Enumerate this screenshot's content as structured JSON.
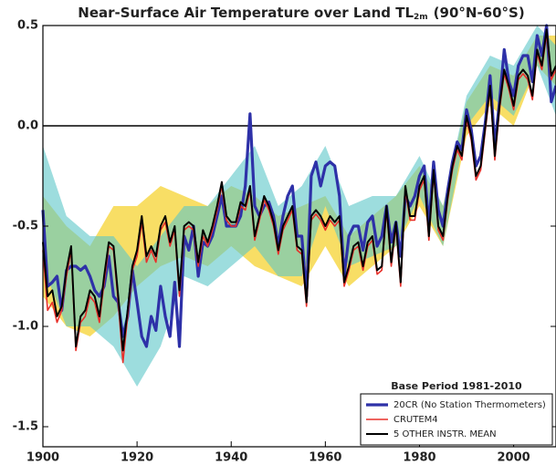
{
  "chart_data": {
    "type": "line",
    "title": "Near-Surface Air Temperature over Land TL",
    "title_subscript": "2m",
    "title_suffix": "(90°N-60°S)",
    "annotation": "Base Period 1981-2010",
    "legend": "lower right",
    "zero_line": true,
    "xlim": [
      1900,
      2009
    ],
    "ylim": [
      -1.6,
      0.5
    ],
    "xticks": [
      1900,
      1920,
      1940,
      1960,
      1980,
      2000
    ],
    "yticks": [
      0.5,
      {
        "value": 0,
        "label": "0.0"
      },
      -0.5,
      {
        "value": -1,
        "label": "-1.0"
      },
      -1.5
    ],
    "x": [
      1900,
      1901,
      1902,
      1903,
      1904,
      1905,
      1906,
      1907,
      1908,
      1909,
      1910,
      1911,
      1912,
      1913,
      1914,
      1915,
      1916,
      1917,
      1918,
      1919,
      1920,
      1921,
      1922,
      1923,
      1924,
      1925,
      1926,
      1927,
      1928,
      1929,
      1930,
      1931,
      1932,
      1933,
      1934,
      1935,
      1936,
      1937,
      1938,
      1939,
      1940,
      1941,
      1942,
      1943,
      1944,
      1945,
      1946,
      1947,
      1948,
      1949,
      1950,
      1951,
      1952,
      1953,
      1954,
      1955,
      1956,
      1957,
      1958,
      1959,
      1960,
      1961,
      1962,
      1963,
      1964,
      1965,
      1966,
      1967,
      1968,
      1969,
      1970,
      1971,
      1972,
      1973,
      1974,
      1975,
      1976,
      1977,
      1978,
      1979,
      1980,
      1981,
      1982,
      1983,
      1984,
      1985,
      1986,
      1987,
      1988,
      1989,
      1990,
      1991,
      1992,
      1993,
      1994,
      1995,
      1996,
      1997,
      1998,
      1999,
      2000,
      2001,
      2002,
      2003,
      2004,
      2005,
      2006,
      2007,
      2008,
      2009
    ],
    "bands": [
      {
        "color": "#f7d84a",
        "x": [
          1900,
          1905,
          1910,
          1915,
          1920,
          1925,
          1930,
          1935,
          1940,
          1945,
          1950,
          1955,
          1960,
          1965,
          1970,
          1975,
          1980,
          1985,
          1990,
          1995,
          2000,
          2005,
          2009
        ],
        "lower": [
          -0.85,
          -1.0,
          -1.05,
          -0.95,
          -0.8,
          -0.7,
          -0.65,
          -0.7,
          -0.6,
          -0.7,
          -0.75,
          -0.8,
          -0.6,
          -0.8,
          -0.7,
          -0.6,
          -0.4,
          -0.6,
          -0.05,
          0.1,
          0.0,
          0.3,
          0.2
        ],
        "upper": [
          -0.35,
          -0.5,
          -0.6,
          -0.4,
          -0.4,
          -0.3,
          -0.35,
          -0.4,
          -0.3,
          -0.35,
          -0.45,
          -0.4,
          -0.35,
          -0.55,
          -0.45,
          -0.35,
          -0.2,
          -0.4,
          0.12,
          0.3,
          0.25,
          0.45,
          0.45
        ]
      },
      {
        "color": "#5cc6c8",
        "x": [
          1900,
          1905,
          1910,
          1915,
          1920,
          1925,
          1930,
          1935,
          1940,
          1945,
          1950,
          1955,
          1960,
          1965,
          1970,
          1975,
          1980,
          1985,
          1990,
          1995,
          2000,
          2005,
          2009
        ],
        "lower": [
          -0.7,
          -1.0,
          -1.0,
          -1.1,
          -1.3,
          -1.1,
          -0.75,
          -0.8,
          -0.7,
          -0.6,
          -0.75,
          -0.75,
          -0.4,
          -0.7,
          -0.65,
          -0.6,
          -0.35,
          -0.6,
          0.0,
          0.15,
          0.05,
          0.3,
          0.05
        ],
        "upper": [
          -0.1,
          -0.45,
          -0.55,
          -0.55,
          -0.7,
          -0.55,
          -0.4,
          -0.4,
          -0.25,
          -0.1,
          -0.4,
          -0.3,
          -0.1,
          -0.4,
          -0.35,
          -0.35,
          -0.15,
          -0.4,
          0.15,
          0.35,
          0.3,
          0.5,
          0.4
        ]
      }
    ],
    "series": [
      {
        "name": "20CR (No Station Thermometers)",
        "color": "#2e31a8",
        "values": [
          -0.42,
          -0.8,
          -0.78,
          -0.75,
          -0.92,
          -0.72,
          -0.7,
          -0.7,
          -0.72,
          -0.7,
          -0.75,
          -0.82,
          -0.85,
          -0.8,
          -0.65,
          -0.85,
          -0.88,
          -1.05,
          -0.95,
          -0.72,
          -0.88,
          -1.05,
          -1.1,
          -0.95,
          -1.02,
          -0.8,
          -0.95,
          -1.05,
          -0.78,
          -1.1,
          -0.55,
          -0.62,
          -0.5,
          -0.75,
          -0.58,
          -0.6,
          -0.55,
          -0.45,
          -0.35,
          -0.5,
          -0.5,
          -0.5,
          -0.45,
          -0.3,
          0.06,
          -0.4,
          -0.45,
          -0.4,
          -0.38,
          -0.45,
          -0.6,
          -0.45,
          -0.35,
          -0.3,
          -0.55,
          -0.55,
          -0.85,
          -0.25,
          -0.18,
          -0.3,
          -0.2,
          -0.18,
          -0.2,
          -0.35,
          -0.75,
          -0.55,
          -0.5,
          -0.5,
          -0.62,
          -0.48,
          -0.45,
          -0.6,
          -0.55,
          -0.4,
          -0.58,
          -0.48,
          -0.65,
          -0.35,
          -0.4,
          -0.35,
          -0.25,
          -0.2,
          -0.5,
          -0.18,
          -0.42,
          -0.5,
          -0.32,
          -0.18,
          -0.08,
          -0.12,
          0.08,
          -0.02,
          -0.2,
          -0.15,
          0.02,
          0.25,
          -0.1,
          0.12,
          0.38,
          0.22,
          0.15,
          0.3,
          0.35,
          0.35,
          0.22,
          0.45,
          0.35,
          0.5,
          0.12,
          0.2
        ]
      },
      {
        "name": "CRUTEM4",
        "color": "#e8302a",
        "values": [
          -0.62,
          -0.92,
          -0.88,
          -0.98,
          -0.92,
          -0.75,
          -0.62,
          -1.12,
          -0.98,
          -0.95,
          -0.85,
          -0.88,
          -0.98,
          -0.78,
          -0.6,
          -0.62,
          -0.88,
          -1.18,
          -0.95,
          -0.72,
          -0.65,
          -0.48,
          -0.68,
          -0.62,
          -0.68,
          -0.52,
          -0.48,
          -0.6,
          -0.52,
          -0.85,
          -0.52,
          -0.5,
          -0.52,
          -0.7,
          -0.55,
          -0.6,
          -0.52,
          -0.42,
          -0.3,
          -0.47,
          -0.5,
          -0.5,
          -0.4,
          -0.42,
          -0.32,
          -0.57,
          -0.47,
          -0.37,
          -0.42,
          -0.5,
          -0.64,
          -0.52,
          -0.47,
          -0.42,
          -0.62,
          -0.64,
          -0.9,
          -0.47,
          -0.44,
          -0.47,
          -0.52,
          -0.47,
          -0.5,
          -0.47,
          -0.8,
          -0.72,
          -0.62,
          -0.6,
          -0.72,
          -0.6,
          -0.57,
          -0.74,
          -0.72,
          -0.42,
          -0.7,
          -0.5,
          -0.8,
          -0.32,
          -0.47,
          -0.47,
          -0.32,
          -0.27,
          -0.57,
          -0.24,
          -0.52,
          -0.57,
          -0.37,
          -0.22,
          -0.12,
          -0.17,
          0.03,
          -0.07,
          -0.27,
          -0.22,
          -0.02,
          0.18,
          -0.17,
          0.08,
          0.26,
          0.18,
          0.08,
          0.23,
          0.26,
          0.23,
          0.13,
          0.36,
          0.28,
          0.46,
          0.23,
          0.28
        ]
      },
      {
        "name": "5 OTHER INSTR. MEAN",
        "color": "#000000",
        "values": [
          -0.58,
          -0.85,
          -0.82,
          -0.95,
          -0.9,
          -0.72,
          -0.6,
          -1.1,
          -0.95,
          -0.92,
          -0.82,
          -0.85,
          -0.95,
          -0.75,
          -0.58,
          -0.6,
          -0.85,
          -1.12,
          -0.92,
          -0.7,
          -0.62,
          -0.45,
          -0.65,
          -0.6,
          -0.65,
          -0.5,
          -0.45,
          -0.58,
          -0.5,
          -0.82,
          -0.5,
          -0.48,
          -0.5,
          -0.68,
          -0.52,
          -0.58,
          -0.5,
          -0.4,
          -0.28,
          -0.45,
          -0.48,
          -0.48,
          -0.38,
          -0.4,
          -0.3,
          -0.55,
          -0.45,
          -0.35,
          -0.4,
          -0.48,
          -0.62,
          -0.5,
          -0.45,
          -0.4,
          -0.6,
          -0.62,
          -0.88,
          -0.45,
          -0.42,
          -0.45,
          -0.5,
          -0.45,
          -0.48,
          -0.45,
          -0.78,
          -0.7,
          -0.6,
          -0.58,
          -0.7,
          -0.58,
          -0.55,
          -0.72,
          -0.7,
          -0.4,
          -0.68,
          -0.48,
          -0.78,
          -0.3,
          -0.45,
          -0.45,
          -0.3,
          -0.25,
          -0.55,
          -0.22,
          -0.5,
          -0.55,
          -0.35,
          -0.2,
          -0.1,
          -0.15,
          0.05,
          -0.05,
          -0.25,
          -0.2,
          0.0,
          0.2,
          -0.15,
          0.1,
          0.28,
          0.2,
          0.1,
          0.25,
          0.28,
          0.25,
          0.15,
          0.38,
          0.3,
          0.48,
          0.25,
          0.3
        ]
      }
    ]
  }
}
